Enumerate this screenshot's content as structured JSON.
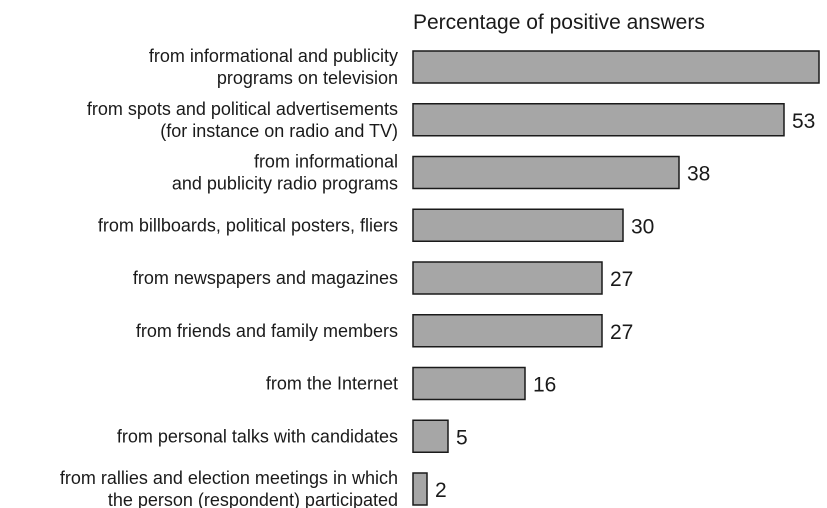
{
  "chart_data": {
    "type": "bar",
    "orientation": "horizontal",
    "title": "Percentage of positive answers",
    "xlim": [
      0,
      58
    ],
    "grid": false,
    "bar_color": "#a6a6a6",
    "bar_edge_color": "#1a1a1a",
    "categories": [
      "from informational and publicity programs on television",
      "from spots and political advertisements (for instance on radio and TV)",
      "from informational and publicity radio programs",
      "from billboards, political posters, fliers",
      "from newspapers and magazines",
      "from friends and family members",
      "from the Internet",
      "from personal talks with candidates",
      "from rallies and election meetings in which the person (respondent) participated"
    ],
    "category_lines": [
      [
        "from informational and publicity",
        "programs on television"
      ],
      [
        "from spots and political advertisements",
        "(for instance on radio and TV)"
      ],
      [
        "from informational",
        "and publicity radio programs"
      ],
      [
        "from billboards, political posters, fliers"
      ],
      [
        "from newspapers and magazines"
      ],
      [
        "from friends and family members"
      ],
      [
        "from the Internet"
      ],
      [
        "from personal talks with candidates"
      ],
      [
        "from rallies and election meetings in which",
        "the person (respondent) participated"
      ]
    ],
    "values": [
      58,
      53,
      38,
      30,
      27,
      27,
      16,
      5,
      2
    ]
  }
}
